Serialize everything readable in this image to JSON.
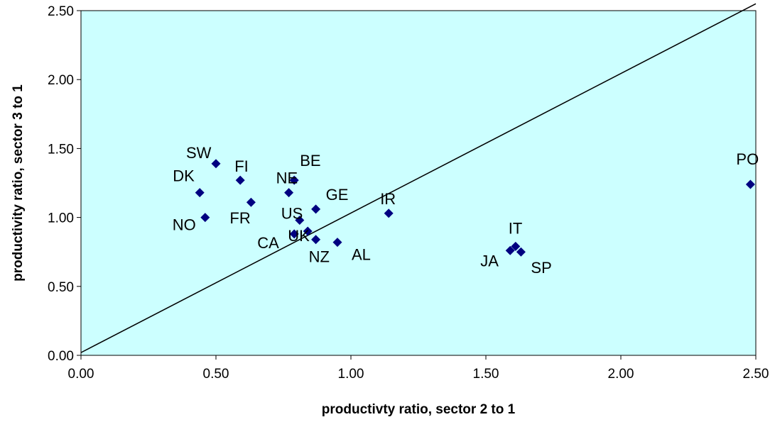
{
  "chart_data": {
    "type": "scatter",
    "xlabel": "productivty ratio, sector 2 to 1",
    "ylabel": "productivity ratio, sector 3 to 1",
    "xlim": [
      0,
      2.5
    ],
    "ylim": [
      0,
      2.5
    ],
    "x_ticks": [
      "0.00",
      "0.50",
      "1.00",
      "1.50",
      "2.00",
      "2.50"
    ],
    "y_ticks": [
      "0.00",
      "0.50",
      "1.00",
      "1.50",
      "2.00",
      "2.50"
    ],
    "plot_background": "#ccffff",
    "marker_color": "#000080",
    "grid": false,
    "reference_line": {
      "x": [
        0,
        2.5
      ],
      "y": [
        0.02,
        2.55
      ]
    },
    "points": [
      {
        "label": "SW",
        "x": 0.5,
        "y": 1.39
      },
      {
        "label": "FI",
        "x": 0.59,
        "y": 1.27
      },
      {
        "label": "DK",
        "x": 0.44,
        "y": 1.18
      },
      {
        "label": "NO",
        "x": 0.46,
        "y": 1.0
      },
      {
        "label": "FR",
        "x": 0.63,
        "y": 1.11
      },
      {
        "label": "NE",
        "x": 0.77,
        "y": 1.18
      },
      {
        "label": "BE",
        "x": 0.79,
        "y": 1.27
      },
      {
        "label": "GE",
        "x": 0.87,
        "y": 1.06
      },
      {
        "label": "US",
        "x": 0.81,
        "y": 0.98
      },
      {
        "label": "UK",
        "x": 0.84,
        "y": 0.9
      },
      {
        "label": "CA",
        "x": 0.79,
        "y": 0.88
      },
      {
        "label": "NZ",
        "x": 0.87,
        "y": 0.84
      },
      {
        "label": "AL",
        "x": 0.95,
        "y": 0.82
      },
      {
        "label": "IR",
        "x": 1.14,
        "y": 1.03
      },
      {
        "label": "IT",
        "x": 1.61,
        "y": 0.79
      },
      {
        "label": "JA",
        "x": 1.59,
        "y": 0.76
      },
      {
        "label": "SP",
        "x": 1.63,
        "y": 0.75
      },
      {
        "label": "PO",
        "x": 2.48,
        "y": 1.24
      }
    ]
  }
}
